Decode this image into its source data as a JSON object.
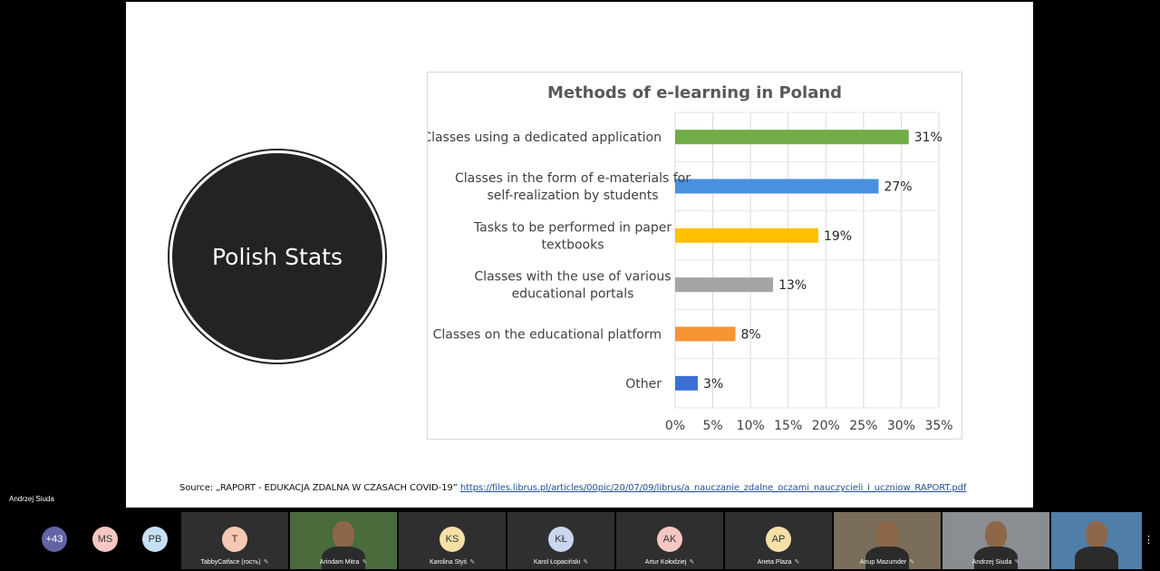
{
  "slide": {
    "circle_text": "Polish Stats",
    "source_prefix": "Source: „RAPORT - EDUKACJA ZDALNA W CZASACH COVID-19” ",
    "source_link": "https://files.librus.pl/articles/00pic/20/07/09/librus/a_nauczanie_zdalne_oczami_nauczycieli_i_uczniow_RAPORT.pdf"
  },
  "chart_data": {
    "type": "bar",
    "orientation": "horizontal",
    "title": "Methods of e-learning in Poland",
    "categories": [
      [
        "Classes using a dedicated application"
      ],
      [
        "Classes in the form of e-materials for",
        "self-realization by students"
      ],
      [
        "Tasks to be performed in paper",
        "textbooks"
      ],
      [
        "Classes with the use of various",
        "educational portals"
      ],
      [
        "Classes on the educational platform"
      ],
      [
        "Other"
      ]
    ],
    "values": [
      31,
      27,
      19,
      13,
      8,
      3
    ],
    "value_labels": [
      "31%",
      "27%",
      "19%",
      "13%",
      "8%",
      "3%"
    ],
    "colors": [
      "#70ad47",
      "#4a90e2",
      "#ffc000",
      "#a5a5a5",
      "#f79433",
      "#3b6fd4"
    ],
    "xlim": [
      0,
      35
    ],
    "xticks": [
      "0%",
      "5%",
      "10%",
      "15%",
      "20%",
      "25%",
      "30%",
      "35%"
    ],
    "grid": true
  },
  "presenter_label": "Andrzej Siuda",
  "participants": [
    {
      "initials": "+43",
      "name": "",
      "color": "#6264a7",
      "text_color": "#ffffff"
    },
    {
      "initials": "MS",
      "name": "",
      "color": "#f4c7c3",
      "text_color": "#333333"
    },
    {
      "initials": "PB",
      "name": "",
      "color": "#c7dff4",
      "text_color": "#333333"
    },
    {
      "initials": "T",
      "name": "TabbyCatface (гость)",
      "color": "#f7c9b4",
      "text_color": "#333333"
    },
    {
      "initials": "",
      "name": "Arindam Mitra",
      "video": true
    },
    {
      "initials": "KS",
      "name": "Karolina Styś",
      "color": "#f6e0a6",
      "text_color": "#333333"
    },
    {
      "initials": "KŁ",
      "name": "Karol Łopaciński",
      "color": "#c9d6ee",
      "text_color": "#333333"
    },
    {
      "initials": "AK",
      "name": "Artur Kołodziej",
      "color": "#f4c7c3",
      "text_color": "#333333"
    },
    {
      "initials": "AP",
      "name": "Aneta Plaza",
      "color": "#f6e0a6",
      "text_color": "#333333"
    },
    {
      "initials": "",
      "name": "Anup Mazumder",
      "video": true
    },
    {
      "initials": "",
      "name": "Andrzej Siuda",
      "video": true
    },
    {
      "initials": "",
      "name": "",
      "video": true
    }
  ],
  "icons": {
    "mic": "mic-off-icon",
    "more": "more-options-icon"
  }
}
